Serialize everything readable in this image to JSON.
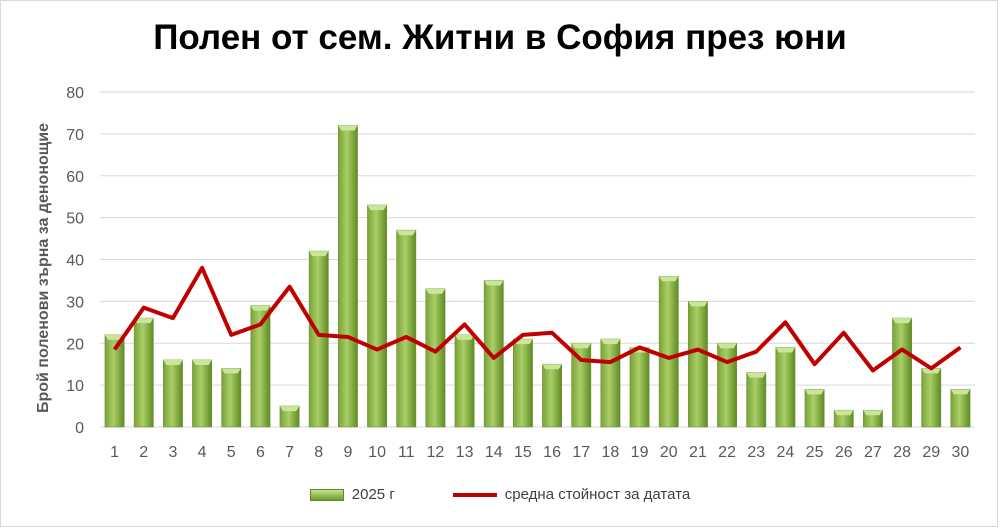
{
  "colors": {
    "bar_light": "#a9cf66",
    "bar_dark": "#6b9430",
    "bar_top": "#c9e69a",
    "line": "#c00000",
    "grid": "#d9d9d9",
    "axis_text": "#595959"
  },
  "chart_data": {
    "type": "bar",
    "title": "Полен от сем. Житни в София през юни",
    "xlabel": "",
    "ylabel": "Брой поленови зърна за денонощие",
    "ylim": [
      0,
      80
    ],
    "yticks": [
      0,
      10,
      20,
      30,
      40,
      50,
      60,
      70,
      80
    ],
    "grid": true,
    "legend_position": "bottom",
    "categories": [
      "1",
      "2",
      "3",
      "4",
      "5",
      "6",
      "7",
      "8",
      "9",
      "10",
      "11",
      "12",
      "13",
      "14",
      "15",
      "16",
      "17",
      "18",
      "19",
      "20",
      "21",
      "22",
      "23",
      "24",
      "25",
      "26",
      "27",
      "28",
      "29",
      "30"
    ],
    "series": [
      {
        "name": "2025 г",
        "type": "bar",
        "values": [
          22,
          26,
          16,
          16,
          14,
          29,
          5,
          42,
          72,
          53,
          47,
          33,
          22,
          35,
          21,
          15,
          20,
          21,
          19,
          36,
          30,
          20,
          13,
          19,
          9,
          4,
          4,
          26,
          14,
          9
        ]
      },
      {
        "name": "средна стойност за датата",
        "type": "line",
        "values": [
          18.5,
          28.5,
          26,
          38,
          22,
          24.5,
          33.5,
          22,
          21.5,
          18.5,
          21.5,
          18,
          24.5,
          16.5,
          22,
          22.5,
          16,
          15.5,
          19,
          16.5,
          18.5,
          15.5,
          18,
          25,
          15,
          22.5,
          13.5,
          18.5,
          14,
          19
        ]
      }
    ]
  }
}
